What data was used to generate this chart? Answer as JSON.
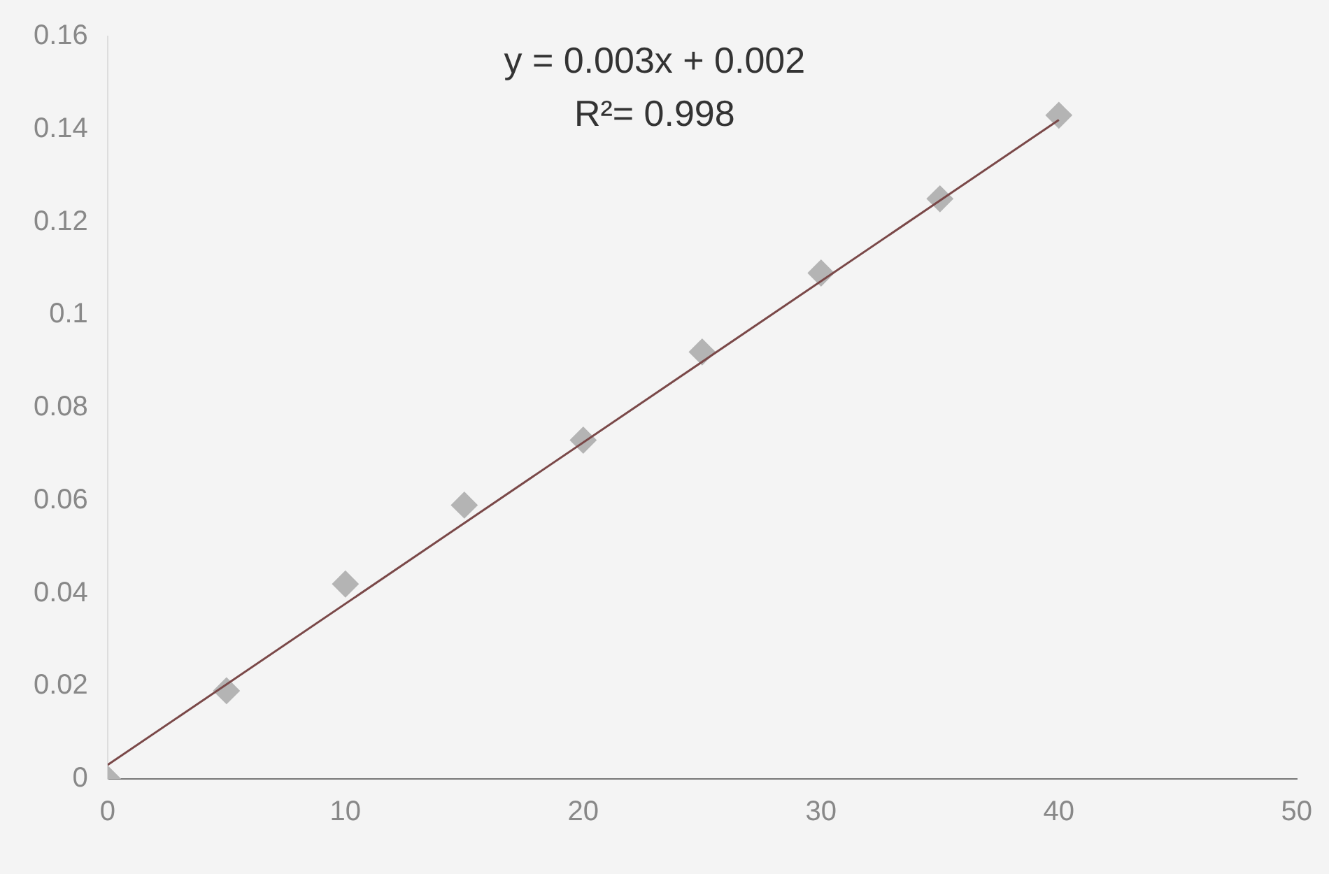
{
  "chart_data": {
    "type": "scatter",
    "x": [
      0,
      5,
      10,
      15,
      20,
      25,
      30,
      35,
      40
    ],
    "series": [
      {
        "type": "scatter",
        "color": "#b4b4b4",
        "values": [
          0,
          0.019,
          0.042,
          0.059,
          0.073,
          0.092,
          0.109,
          0.125,
          0.143
        ],
        "marker": "diamond"
      },
      {
        "type": "line",
        "color": "#7a4848",
        "x": [
          0,
          40
        ],
        "values": [
          0.003,
          0.142
        ],
        "marker": "none"
      }
    ],
    "xlim": [
      0,
      50
    ],
    "xticks": [
      0,
      10,
      20,
      30,
      40,
      50
    ],
    "ylim": [
      0,
      0.16
    ],
    "yticks": [
      0,
      0.02,
      0.04,
      0.06,
      0.08,
      0.1,
      0.12,
      0.14,
      0.16
    ],
    "grid": false,
    "legend": false,
    "annotations": [
      "y = 0.003x + 0.002",
      "R²= 0.998"
    ]
  }
}
